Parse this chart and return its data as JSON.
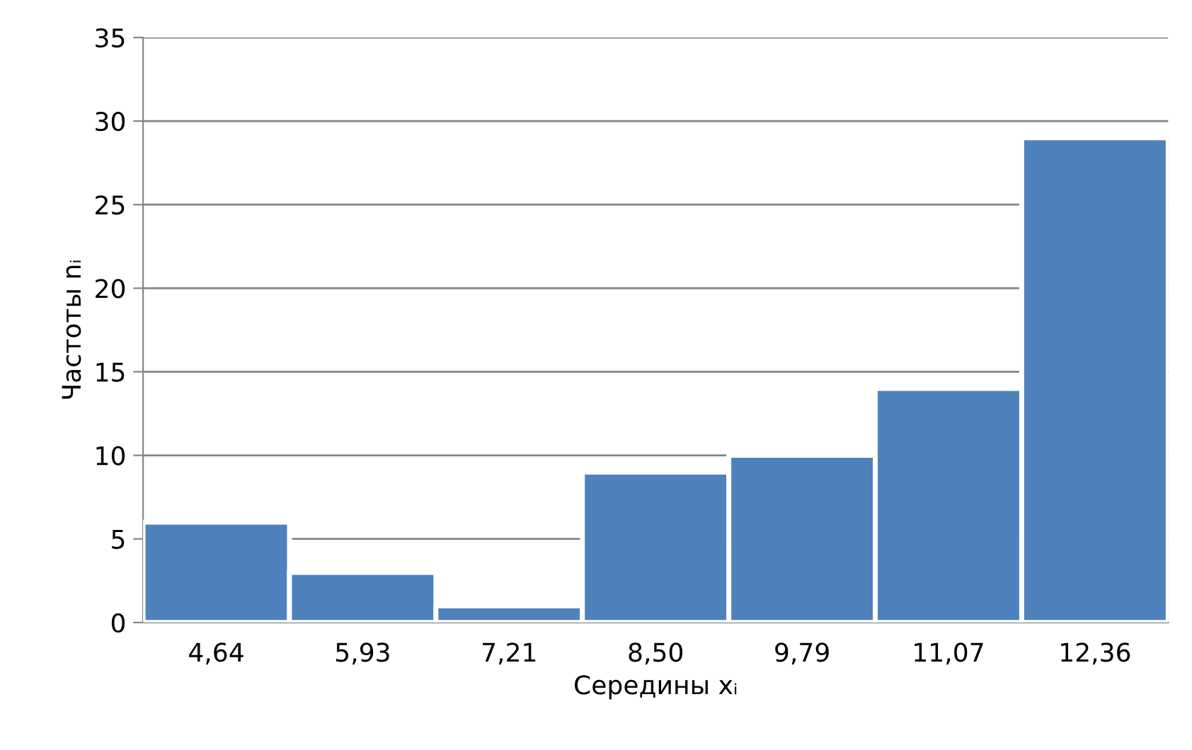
{
  "chart_data": {
    "type": "bar",
    "xlabel": "Середины xᵢ",
    "ylabel": "Частоты nᵢ",
    "categories": [
      "4,64",
      "5,93",
      "7,21",
      "8,50",
      "9,79",
      "11,07",
      "12,36"
    ],
    "values": [
      6,
      3,
      1,
      9,
      10,
      14,
      29
    ],
    "color": "#4f81bd",
    "ylim": [
      0,
      35
    ],
    "yticks": [
      0,
      5,
      10,
      15,
      20,
      25,
      30,
      35
    ],
    "grid": "y",
    "legend": false
  }
}
